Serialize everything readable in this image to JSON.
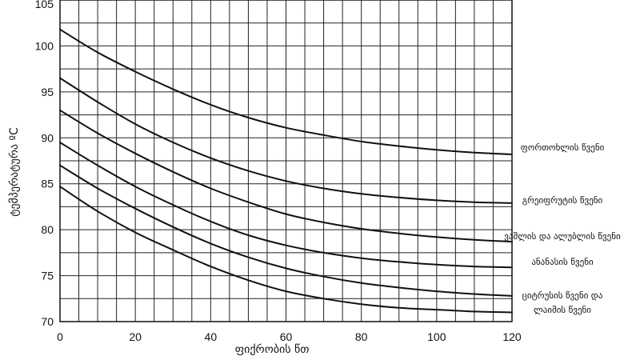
{
  "chart_data": {
    "type": "line",
    "title": "",
    "xlabel": "ფიქრობის წთ",
    "ylabel": "ტემპერატურა ºC",
    "xlim": [
      0,
      120
    ],
    "ylim": [
      70,
      105
    ],
    "x_ticks": [
      "0",
      "20",
      "40",
      "60",
      "80",
      "100",
      "120"
    ],
    "y_ticks": [
      "70",
      "75",
      "80",
      "85",
      "90",
      "95",
      "100",
      "105"
    ],
    "grid": true,
    "legend": "right (labels at line ends)",
    "x": [
      0,
      10,
      20,
      30,
      40,
      50,
      60,
      70,
      80,
      90,
      100,
      110,
      120
    ],
    "series": [
      {
        "name": "ფორთოხლის წვენი",
        "values": [
          101.8,
          99.3,
          97.2,
          95.3,
          93.6,
          92.2,
          91.1,
          90.3,
          89.6,
          89.1,
          88.7,
          88.4,
          88.2
        ]
      },
      {
        "name": "გრეიფრუტის წვენი",
        "values": [
          96.5,
          93.9,
          91.5,
          89.5,
          87.8,
          86.4,
          85.3,
          84.5,
          83.9,
          83.5,
          83.2,
          83.0,
          82.9
        ]
      },
      {
        "name": "ვაშლის და ალუბლის წვენი",
        "values": [
          93.0,
          90.5,
          88.3,
          86.3,
          84.5,
          83.0,
          81.7,
          80.8,
          80.1,
          79.6,
          79.2,
          78.9,
          78.7
        ]
      },
      {
        "name": "ანანასის წვენი",
        "values": [
          89.5,
          87.0,
          84.7,
          82.7,
          80.9,
          79.4,
          78.3,
          77.5,
          76.9,
          76.5,
          76.2,
          76.0,
          75.9
        ]
      },
      {
        "name": "ციტრუსის წვენი და",
        "values": [
          87.0,
          84.5,
          82.3,
          80.3,
          78.5,
          77.0,
          75.8,
          74.9,
          74.2,
          73.7,
          73.3,
          73.0,
          72.8
        ]
      },
      {
        "name": "ლაიმის წვენი",
        "values": [
          84.7,
          82.0,
          79.7,
          77.8,
          76.0,
          74.5,
          73.3,
          72.5,
          71.9,
          71.5,
          71.3,
          71.1,
          71.0
        ]
      }
    ]
  }
}
